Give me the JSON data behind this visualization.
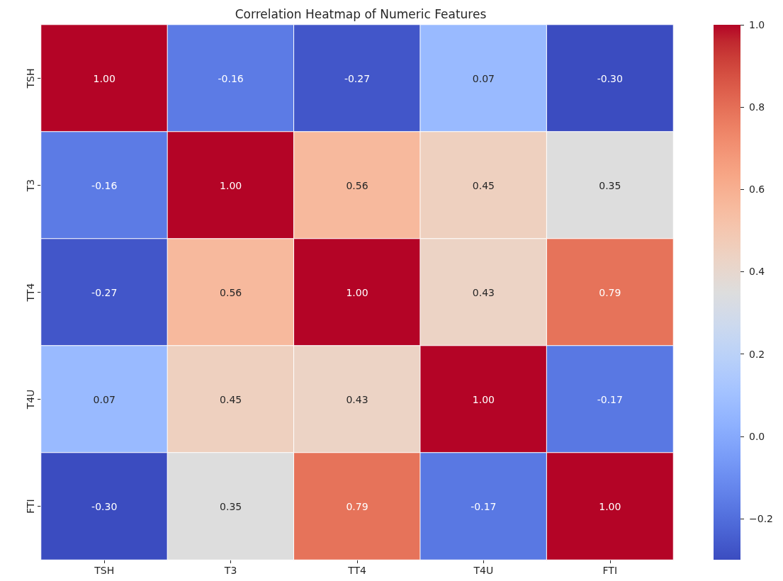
{
  "chart_data": {
    "type": "heatmap",
    "title": "Correlation Heatmap of Numeric Features",
    "categories": [
      "TSH",
      "T3",
      "TT4",
      "T4U",
      "FTI"
    ],
    "y_categories": [
      "TSH",
      "T3",
      "TT4",
      "T4U",
      "FTI"
    ],
    "cells": [
      [
        1.0,
        -0.16,
        -0.27,
        0.07,
        -0.3
      ],
      [
        -0.16,
        1.0,
        0.56,
        0.45,
        0.35
      ],
      [
        -0.27,
        0.56,
        1.0,
        0.43,
        0.79
      ],
      [
        0.07,
        0.45,
        0.43,
        1.0,
        -0.17
      ],
      [
        -0.3,
        0.35,
        0.79,
        -0.17,
        1.0
      ]
    ],
    "cell_labels": [
      [
        "1.00",
        "-0.16",
        "-0.27",
        "0.07",
        "-0.30"
      ],
      [
        "-0.16",
        "1.00",
        "0.56",
        "0.45",
        "0.35"
      ],
      [
        "-0.27",
        "0.56",
        "1.00",
        "0.43",
        "0.79"
      ],
      [
        "0.07",
        "0.45",
        "0.43",
        "1.00",
        "-0.17"
      ],
      [
        "-0.30",
        "0.35",
        "0.79",
        "-0.17",
        "1.00"
      ]
    ],
    "clim": [
      -0.3,
      1.0
    ],
    "cticks": [
      {
        "value": -0.2,
        "label": "−0.2"
      },
      {
        "value": 0,
        "label": "0.0"
      },
      0.2,
      0.4,
      0.6,
      0.8,
      {
        "value": 1.0,
        "label": "1.0"
      }
    ]
  }
}
